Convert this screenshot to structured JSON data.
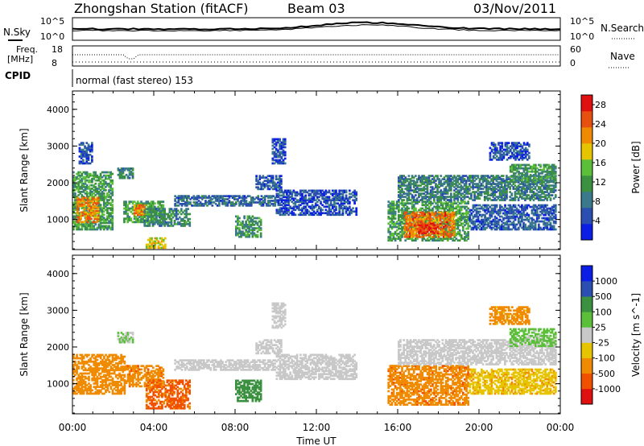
{
  "header": {
    "station": "Zhongshan Station (fitACF)",
    "beam": "Beam 03",
    "date": "03/Nov/2011"
  },
  "strip_labels": {
    "nsky": "N.Sky",
    "nsky_tick_top": "10^5",
    "nsky_tick_bottom": "10^0",
    "nsearch": "N.Search",
    "nsearch_tick_top": "10^5",
    "nsearch_tick_bottom": "10^0",
    "freq_line1": "Freq.",
    "freq_line2": "[MHz]",
    "freq_tick_top": "18",
    "freq_tick_bottom": "8",
    "nave": "Nave",
    "nave_tick_top": "60",
    "nave_tick_bottom": "0",
    "cpid": "CPID",
    "cpid_value": "normal (fast stereo) 153"
  },
  "colors": {
    "power": [
      "#0a1ee6",
      "#2a4fb0",
      "#3a7a8a",
      "#3b9140",
      "#5bbf3a",
      "#e6c400",
      "#f08a00",
      "#e85010",
      "#e01010"
    ],
    "velocity": [
      "#e01010",
      "#f05000",
      "#f08a00",
      "#e6c400",
      "#c8c8c8",
      "#5bbf3a",
      "#3b9140",
      "#2a4fb0",
      "#0a1ee6"
    ]
  },
  "chart_data": [
    {
      "type": "heatmap",
      "quantity": "Power",
      "ylabel": "Slant Range [km]",
      "xlabel": "Time UT",
      "colorbar_label": "Power [dB]",
      "x_ticks": [
        "00:00",
        "04:00",
        "08:00",
        "12:00",
        "16:00",
        "20:00",
        "00:00"
      ],
      "y_ticks": [
        1000,
        2000,
        3000,
        4000
      ],
      "ylim": [
        180,
        4500
      ],
      "xlim_hours": [
        0,
        24
      ],
      "colorbar_ticks": [
        4,
        8,
        12,
        16,
        20,
        24,
        28
      ],
      "colorbar_range": [
        0,
        30
      ],
      "regions": [
        {
          "t0": 0.0,
          "t1": 2.0,
          "r0": 700,
          "r1": 2300,
          "value": 12
        },
        {
          "t0": 0.2,
          "t1": 1.3,
          "r0": 900,
          "r1": 1600,
          "value": 22
        },
        {
          "t0": 0.3,
          "t1": 1.0,
          "r0": 2500,
          "r1": 3100,
          "value": 5
        },
        {
          "t0": 2.2,
          "t1": 3.0,
          "r0": 2100,
          "r1": 2400,
          "value": 10
        },
        {
          "t0": 2.5,
          "t1": 4.5,
          "r0": 900,
          "r1": 1500,
          "value": 12
        },
        {
          "t0": 3.0,
          "t1": 3.6,
          "r0": 1100,
          "r1": 1400,
          "value": 22
        },
        {
          "t0": 3.5,
          "t1": 5.8,
          "r0": 800,
          "r1": 1300,
          "value": 10
        },
        {
          "t0": 3.6,
          "t1": 4.6,
          "r0": 200,
          "r1": 500,
          "value": 18
        },
        {
          "t0": 5.0,
          "t1": 10.0,
          "r0": 1350,
          "r1": 1650,
          "value": 7
        },
        {
          "t0": 8.0,
          "t1": 9.3,
          "r0": 500,
          "r1": 1100,
          "value": 11
        },
        {
          "t0": 9.0,
          "t1": 10.3,
          "r0": 1800,
          "r1": 2200,
          "value": 6
        },
        {
          "t0": 9.8,
          "t1": 10.5,
          "r0": 2500,
          "r1": 3200,
          "value": 5
        },
        {
          "t0": 10.0,
          "t1": 14.0,
          "r0": 1100,
          "r1": 1800,
          "value": 5
        },
        {
          "t0": 15.5,
          "t1": 19.5,
          "r0": 400,
          "r1": 1500,
          "value": 12
        },
        {
          "t0": 16.3,
          "t1": 18.8,
          "r0": 500,
          "r1": 1200,
          "value": 23
        },
        {
          "t0": 17.0,
          "t1": 18.0,
          "r0": 600,
          "r1": 900,
          "value": 28
        },
        {
          "t0": 16.0,
          "t1": 23.8,
          "r0": 1500,
          "r1": 2200,
          "value": 9
        },
        {
          "t0": 19.5,
          "t1": 23.8,
          "r0": 700,
          "r1": 1400,
          "value": 6
        },
        {
          "t0": 21.5,
          "t1": 23.8,
          "r0": 2000,
          "r1": 2500,
          "value": 11
        },
        {
          "t0": 20.5,
          "t1": 22.5,
          "r0": 2600,
          "r1": 3100,
          "value": 5
        }
      ]
    },
    {
      "type": "heatmap",
      "quantity": "Velocity",
      "ylabel": "Slant Range [km]",
      "xlabel": "Time UT",
      "colorbar_label": "Velocity [m s^-1]",
      "x_ticks": [
        "00:00",
        "04:00",
        "08:00",
        "12:00",
        "16:00",
        "20:00",
        "00:00"
      ],
      "y_ticks": [
        1000,
        2000,
        3000,
        4000
      ],
      "ylim": [
        180,
        4500
      ],
      "xlim_hours": [
        0,
        24
      ],
      "colorbar_ticks": [
        "1000",
        "500",
        "100",
        "25",
        "-25",
        "-100",
        "-500",
        "-1000"
      ],
      "regions": [
        {
          "t0": 0.0,
          "t1": 2.6,
          "r0": 700,
          "r1": 1800,
          "value": -300
        },
        {
          "t0": 2.6,
          "t1": 4.5,
          "r0": 900,
          "r1": 1500,
          "value": -400
        },
        {
          "t0": 3.6,
          "t1": 5.8,
          "r0": 300,
          "r1": 1100,
          "value": -600
        },
        {
          "t0": 2.2,
          "t1": 3.0,
          "r0": 2100,
          "r1": 2400,
          "value": 30
        },
        {
          "t0": 5.0,
          "t1": 10.0,
          "r0": 1350,
          "r1": 1650,
          "value": 0
        },
        {
          "t0": 8.0,
          "t1": 9.3,
          "r0": 500,
          "r1": 1100,
          "value": 200
        },
        {
          "t0": 9.0,
          "t1": 10.3,
          "r0": 1800,
          "r1": 2200,
          "value": 5
        },
        {
          "t0": 9.8,
          "t1": 10.5,
          "r0": 2500,
          "r1": 3200,
          "value": 0
        },
        {
          "t0": 10.0,
          "t1": 14.0,
          "r0": 1100,
          "r1": 1800,
          "value": 0
        },
        {
          "t0": 15.5,
          "t1": 19.5,
          "r0": 400,
          "r1": 1500,
          "value": -400
        },
        {
          "t0": 16.0,
          "t1": 23.8,
          "r0": 1500,
          "r1": 2200,
          "value": 0
        },
        {
          "t0": 19.5,
          "t1": 23.8,
          "r0": 700,
          "r1": 1400,
          "value": -80
        },
        {
          "t0": 21.5,
          "t1": 23.8,
          "r0": 2000,
          "r1": 2500,
          "value": 40
        },
        {
          "t0": 20.5,
          "t1": 22.5,
          "r0": 2600,
          "r1": 3100,
          "value": -150
        }
      ]
    }
  ]
}
